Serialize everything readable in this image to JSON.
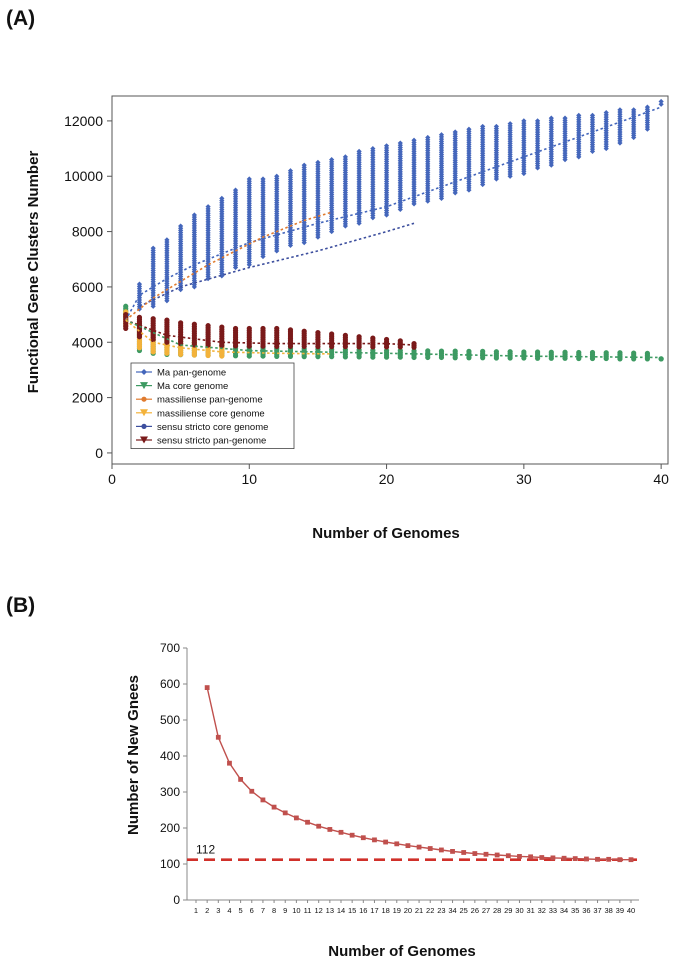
{
  "chart_data": [
    {
      "panel": "(A)",
      "type": "scatter",
      "xlabel": "Number of Genomes",
      "ylabel": "Functional Gene Clusters Number",
      "xlim": [
        0,
        40.5
      ],
      "ylim": [
        -400,
        12900
      ],
      "xticks": [
        0,
        10,
        20,
        30,
        40
      ],
      "yticks": [
        0,
        2000,
        4000,
        6000,
        8000,
        10000,
        12000
      ],
      "legend": {
        "placement": "bottom-left",
        "entries": [
          {
            "label": "Ma pan-genome",
            "color": "#4466bb",
            "marker": "diamond"
          },
          {
            "label": "Ma core genome",
            "color": "#3d9a62",
            "marker": "triangle-down"
          },
          {
            "label": "massiliense pan-genome",
            "color": "#e07b2f",
            "marker": "circle"
          },
          {
            "label": "massiliense core genome",
            "color": "#f3b23a",
            "marker": "triangle-down"
          },
          {
            "label": "sensu stricto core genome",
            "color": "#3d4f9e",
            "marker": "circle"
          },
          {
            "label": "sensu stricto pan-genome",
            "color": "#7a1a1a",
            "marker": "triangle-down"
          }
        ]
      },
      "series": [
        {
          "name": "Ma pan-genome",
          "color": "#4466bb",
          "x": [
            1,
            2,
            3,
            4,
            5,
            6,
            7,
            8,
            9,
            10,
            11,
            12,
            13,
            14,
            15,
            16,
            17,
            18,
            19,
            20,
            21,
            22,
            23,
            24,
            25,
            26,
            27,
            28,
            29,
            30,
            31,
            32,
            33,
            34,
            35,
            36,
            37,
            38,
            39,
            40
          ],
          "min": [
            4700,
            5200,
            5300,
            5500,
            5900,
            6000,
            6300,
            6400,
            6700,
            6800,
            7100,
            7300,
            7500,
            7600,
            7800,
            8000,
            8200,
            8300,
            8500,
            8600,
            8800,
            9000,
            9100,
            9200,
            9400,
            9500,
            9700,
            9900,
            10000,
            10100,
            10300,
            10400,
            10600,
            10700,
            10900,
            11000,
            11200,
            11400,
            11700,
            12600
          ],
          "max": [
            5100,
            6100,
            7400,
            7700,
            8200,
            8600,
            8900,
            9200,
            9500,
            9900,
            9900,
            10000,
            10200,
            10400,
            10500,
            10600,
            10700,
            10900,
            11000,
            11100,
            11200,
            11300,
            11400,
            11500,
            11600,
            11700,
            11800,
            11800,
            11900,
            12000,
            12000,
            12100,
            12100,
            12200,
            12200,
            12300,
            12400,
            12400,
            12500,
            12700
          ]
        },
        {
          "name": "Ma core genome",
          "color": "#3d9a62",
          "x": [
            1,
            2,
            3,
            4,
            5,
            6,
            7,
            8,
            9,
            10,
            11,
            12,
            13,
            14,
            15,
            16,
            17,
            18,
            19,
            20,
            21,
            22,
            23,
            24,
            25,
            26,
            27,
            28,
            29,
            30,
            31,
            32,
            33,
            34,
            35,
            36,
            37,
            38,
            39,
            40
          ],
          "min": [
            4900,
            3700,
            3600,
            3560,
            3550,
            3540,
            3530,
            3520,
            3510,
            3500,
            3500,
            3490,
            3490,
            3480,
            3480,
            3480,
            3470,
            3470,
            3460,
            3460,
            3460,
            3450,
            3450,
            3450,
            3440,
            3440,
            3440,
            3430,
            3430,
            3430,
            3420,
            3420,
            3420,
            3410,
            3410,
            3410,
            3400,
            3400,
            3400,
            3400
          ],
          "max": [
            5300,
            4700,
            4400,
            4200,
            4100,
            4000,
            3950,
            3900,
            3850,
            3820,
            3800,
            3780,
            3770,
            3760,
            3750,
            3740,
            3730,
            3720,
            3710,
            3700,
            3700,
            3690,
            3690,
            3680,
            3680,
            3670,
            3670,
            3660,
            3660,
            3650,
            3650,
            3640,
            3640,
            3630,
            3630,
            3620,
            3620,
            3610,
            3600,
            3400
          ]
        },
        {
          "name": "massiliense core genome",
          "color": "#f3b23a",
          "x": [
            1,
            2,
            3,
            4,
            5,
            6,
            7,
            8
          ],
          "min": [
            4600,
            3800,
            3650,
            3600,
            3560,
            3540,
            3520,
            3500
          ],
          "max": [
            5100,
            4400,
            4300,
            4200,
            4100,
            4000,
            3950,
            3900
          ]
        },
        {
          "name": "sensu stricto pan-genome",
          "color": "#7a1a1a",
          "x": [
            1,
            2,
            3,
            4,
            5,
            6,
            7,
            8,
            9,
            10,
            11,
            12,
            13,
            14,
            15,
            16,
            17,
            18,
            19,
            20,
            21,
            22
          ],
          "min": [
            4500,
            4200,
            4100,
            4000,
            3950,
            3900,
            3900,
            3880,
            3870,
            3860,
            3860,
            3850,
            3850,
            3850,
            3840,
            3840,
            3840,
            3830,
            3830,
            3830,
            3830,
            3820
          ],
          "max": [
            5000,
            4900,
            4850,
            4800,
            4700,
            4650,
            4600,
            4550,
            4500,
            4500,
            4500,
            4500,
            4450,
            4400,
            4350,
            4300,
            4250,
            4200,
            4150,
            4100,
            4050,
            3950
          ]
        }
      ],
      "fit_lines": [
        {
          "name": "Ma pan-genome fit",
          "color": "#4466bb",
          "x": [
            1,
            2,
            4,
            6,
            8,
            10,
            15,
            20,
            25,
            30,
            35,
            40
          ],
          "y": [
            4800,
            5700,
            6300,
            6800,
            7200,
            7600,
            8300,
            8900,
            9800,
            10700,
            11600,
            12500
          ]
        },
        {
          "name": "Ma pan-genome lower fit",
          "color": "#3d4f9e",
          "x": [
            2,
            5,
            10,
            15,
            20,
            22
          ],
          "y": [
            5300,
            6000,
            6700,
            7300,
            8000,
            8300
          ]
        },
        {
          "name": "massiliense pan-genome fit",
          "color": "#e07b2f",
          "x": [
            1,
            3,
            5,
            7,
            9,
            11,
            13,
            14,
            16
          ],
          "y": [
            4800,
            5600,
            6200,
            6800,
            7300,
            7800,
            8200,
            8400,
            8700
          ]
        },
        {
          "name": "sensu stricto pan-genome fit",
          "color": "#7a1a1a",
          "x": [
            1,
            4,
            8,
            12,
            16,
            20,
            22
          ],
          "y": [
            4800,
            4250,
            4000,
            3950,
            3950,
            3950,
            3900
          ]
        },
        {
          "name": "Ma core genome fit",
          "color": "#3d9a62",
          "x": [
            1,
            5,
            10,
            20,
            30,
            40
          ],
          "y": [
            4800,
            3900,
            3700,
            3600,
            3500,
            3450
          ]
        },
        {
          "name": "massiliense core genome fit",
          "color": "#f3b23a",
          "x": [
            1,
            3,
            5,
            8,
            12,
            16
          ],
          "y": [
            4800,
            4000,
            3800,
            3650,
            3600,
            3580
          ]
        }
      ]
    },
    {
      "panel": "(B)",
      "type": "line",
      "xlabel": "Number of Genomes",
      "ylabel": "Number of New Gnees",
      "ylim": [
        0,
        700
      ],
      "yticks": [
        0,
        100,
        200,
        300,
        400,
        500,
        600,
        700
      ],
      "categories": [
        "1",
        "2",
        "3",
        "4",
        "5",
        "6",
        "7",
        "8",
        "9",
        "10",
        "11",
        "12",
        "13",
        "14",
        "15",
        "16",
        "17",
        "18",
        "19",
        "20",
        "21",
        "22",
        "23",
        "34",
        "25",
        "26",
        "27",
        "28",
        "29",
        "30",
        "31",
        "32",
        "33",
        "34",
        "35",
        "36",
        "37",
        "38",
        "39",
        "40"
      ],
      "series": [
        {
          "name": "new genes",
          "color": "#c0504d",
          "values": [
            null,
            590,
            452,
            380,
            335,
            302,
            278,
            258,
            242,
            228,
            216,
            205,
            196,
            188,
            180,
            173,
            167,
            161,
            156,
            151,
            147,
            143,
            139,
            135,
            132,
            129,
            127,
            125,
            123,
            121,
            120,
            118,
            117,
            116,
            115,
            114,
            113,
            113,
            112,
            112
          ]
        }
      ],
      "reference_line": {
        "value": 112,
        "label": "112",
        "color": "#d0302a",
        "style": "dashed"
      }
    }
  ]
}
